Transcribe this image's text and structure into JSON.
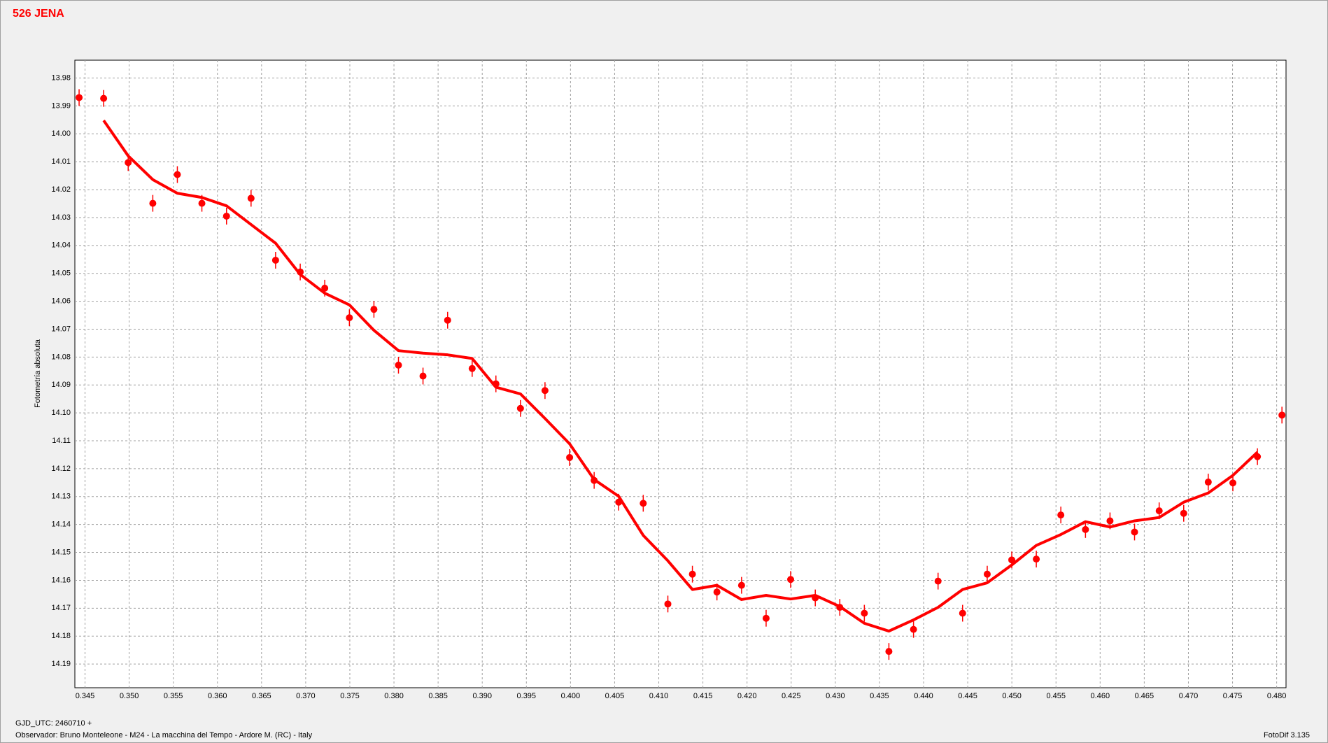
{
  "chart_data": {
    "type": "scatter-fit",
    "title": "526 JENA",
    "ylabel": "Fotometría absoluta",
    "footer_left_1": "GJD_UTC: 2460710 +",
    "footer_left_2": "Observador: Bruno Monteleone - M24 - La macchina del Tempo - Ardore M. (RC) - Italy",
    "footer_right": "FotoDif 3.135",
    "xlim": [
      0.34385,
      0.48106
    ],
    "ylim": [
      14.1985,
      13.9736
    ],
    "y_inverted": true,
    "grid": true,
    "xticks": [
      0.345,
      {
        "value": 0.35,
        "label": "0.350"
      },
      0.355,
      {
        "value": 0.36,
        "label": "0.360"
      },
      0.365,
      {
        "value": 0.37,
        "label": "0.370"
      },
      0.375,
      {
        "value": 0.38,
        "label": "0.380"
      },
      0.385,
      {
        "value": 0.39,
        "label": "0.390"
      },
      0.395,
      {
        "value": 0.4,
        "label": "0.400"
      },
      0.405,
      {
        "value": 0.41,
        "label": "0.410"
      },
      0.415,
      {
        "value": 0.42,
        "label": "0.420"
      },
      0.425,
      {
        "value": 0.43,
        "label": "0.430"
      },
      0.435,
      {
        "value": 0.44,
        "label": "0.440"
      },
      0.445,
      {
        "value": 0.45,
        "label": "0.450"
      },
      0.455,
      {
        "value": 0.46,
        "label": "0.460"
      },
      0.465,
      {
        "value": 0.47,
        "label": "0.470"
      },
      0.475,
      {
        "value": 0.48,
        "label": "0.480"
      }
    ],
    "yticks": [
      13.98,
      13.99,
      {
        "value": 14.0,
        "label": "14.00"
      },
      14.01,
      14.02,
      14.03,
      14.04,
      14.05,
      14.06,
      14.07,
      14.08,
      14.09,
      {
        "value": 14.1,
        "label": "14.10"
      },
      14.11,
      14.12,
      14.13,
      14.14,
      14.15,
      14.16,
      14.17,
      14.18,
      14.19
    ],
    "series": [
      {
        "color": "#ff0000",
        "x": [
          0.34433,
          0.34711,
          0.34989,
          0.35268,
          0.35546,
          0.35824,
          0.36103,
          0.36381,
          0.36659,
          0.36938,
          0.37216,
          0.37495,
          0.37773,
          0.38051,
          0.38329,
          0.38608,
          0.38886,
          0.39155,
          0.39433,
          0.39711,
          0.3999,
          0.40268,
          0.40546,
          0.40824,
          0.41103,
          0.41381,
          0.41659,
          0.41938,
          0.42216,
          0.42494,
          0.42773,
          0.43051,
          0.43329,
          0.43607,
          0.43886,
          0.44164,
          0.44442,
          0.44721,
          0.44999,
          0.45277,
          0.45555,
          0.45834,
          0.46112,
          0.4639,
          0.46669,
          0.46947,
          0.47225,
          0.47504,
          0.47782,
          0.4806
        ],
        "values": [
          13.987,
          13.9873,
          14.0103,
          14.0249,
          14.0146,
          14.0249,
          14.0295,
          14.0231,
          14.0453,
          14.0495,
          14.0553,
          14.0659,
          14.0629,
          14.0829,
          14.0868,
          14.0668,
          14.0841,
          14.0896,
          14.0984,
          14.092,
          14.116,
          14.1242,
          14.132,
          14.1324,
          14.1685,
          14.1578,
          14.1642,
          14.1618,
          14.1736,
          14.1597,
          14.1663,
          14.1697,
          14.1718,
          14.1855,
          14.1776,
          14.1603,
          14.1718,
          14.1578,
          14.1527,
          14.1524,
          14.1366,
          14.1418,
          14.1387,
          14.1427,
          14.1351,
          14.136,
          14.1248,
          14.1251,
          14.1157,
          14.1008
        ],
        "errors": [
          0.003,
          0.003,
          0.003,
          0.003,
          0.003,
          0.003,
          0.003,
          0.003,
          0.003,
          0.003,
          0.003,
          0.003,
          0.003,
          0.003,
          0.003,
          0.003,
          0.003,
          0.003,
          0.003,
          0.003,
          0.003,
          0.003,
          0.003,
          0.003,
          0.003,
          0.003,
          0.003,
          0.003,
          0.003,
          0.003,
          0.003,
          0.003,
          0.003,
          0.003,
          0.003,
          0.003,
          0.003,
          0.003,
          0.003,
          0.003,
          0.003,
          0.003,
          0.003,
          0.003,
          0.003,
          0.003,
          0.003,
          0.003,
          0.003,
          0.003
        ]
      },
      {
        "color": "#ff0000",
        "x": [
          0.34711,
          0.34989,
          0.35268,
          0.35546,
          0.35824,
          0.36103,
          0.36381,
          0.36659,
          0.36938,
          0.37216,
          0.37495,
          0.37773,
          0.38051,
          0.38329,
          0.38608,
          0.38886,
          0.39155,
          0.39433,
          0.39711,
          0.3999,
          0.40268,
          0.40546,
          0.40824,
          0.41103,
          0.41381,
          0.41659,
          0.41938,
          0.42216,
          0.42494,
          0.42773,
          0.43051,
          0.43329,
          0.43607,
          0.43886,
          0.44164,
          0.44442,
          0.44721,
          0.44999,
          0.45277,
          0.45555,
          0.45834,
          0.46112,
          0.4639,
          0.46669,
          0.46947,
          0.47225,
          0.47504,
          0.47782
        ],
        "values": [
          13.9952,
          14.0079,
          14.0164,
          14.0213,
          14.0228,
          14.0258,
          14.0325,
          14.0392,
          14.0504,
          14.0571,
          14.0613,
          14.0704,
          14.0777,
          14.0786,
          14.0792,
          14.0805,
          14.0908,
          14.0932,
          14.102,
          14.1111,
          14.1239,
          14.1299,
          14.1439,
          14.153,
          14.1633,
          14.1618,
          14.1669,
          14.1654,
          14.1667,
          14.1654,
          14.1694,
          14.1754,
          14.1782,
          14.1742,
          14.1697,
          14.1633,
          14.1609,
          14.1545,
          14.1475,
          14.1436,
          14.139,
          14.1409,
          14.1387,
          14.1375,
          14.132,
          14.1287,
          14.1224,
          14.1141
        ]
      }
    ]
  }
}
